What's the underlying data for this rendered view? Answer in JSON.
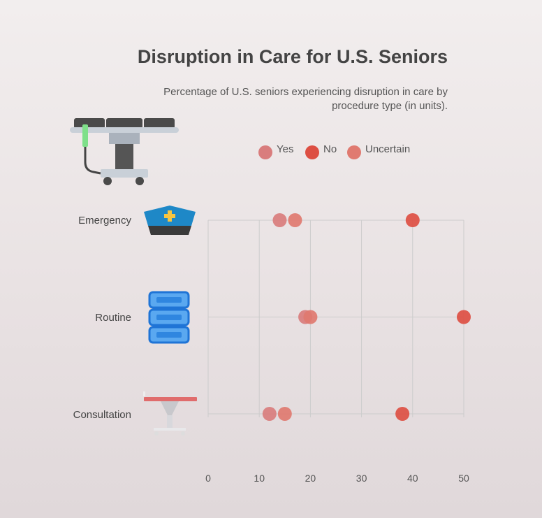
{
  "chart_data": {
    "type": "scatter",
    "title": "Disruption in Care for U.S. Seniors",
    "subtitle": "Percentage of U.S. seniors experiencing disruption in care by procedure type (in units).",
    "xlabel": "",
    "ylabel": "",
    "xlim": [
      0,
      50
    ],
    "x_ticks": [
      "0",
      "10",
      "20",
      "30",
      "40",
      "50"
    ],
    "grid": true,
    "legend_position": "top",
    "categories": [
      "Emergency",
      "Routine",
      "Consultation"
    ],
    "category_icons": [
      "nurse-cap-icon",
      "spine-icon",
      "examination-table-icon"
    ],
    "header_icon": "operating-table-icon",
    "series": [
      {
        "name": "Yes",
        "color": "#d97d7d",
        "values": [
          14,
          19,
          12
        ]
      },
      {
        "name": "No",
        "color": "#dd4f43",
        "values": [
          40,
          50,
          38
        ]
      },
      {
        "name": "Uncertain",
        "color": "#e07a70",
        "values": [
          17,
          20,
          15
        ]
      }
    ]
  }
}
